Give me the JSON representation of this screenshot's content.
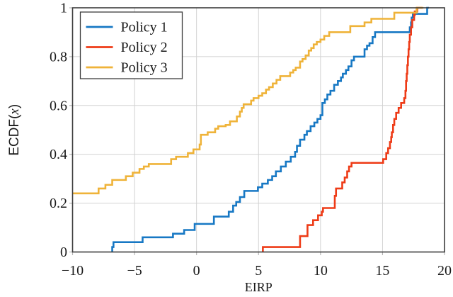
{
  "figure": {
    "background": "#ffffff",
    "frame_color": "#3d3d3d",
    "grid_color": "#d2d2d2",
    "tick_color": "#b5b5b5",
    "text_color": "#1a1a1a"
  },
  "legend": {
    "position": "top-left",
    "entries": [
      {
        "label": "Policy 1",
        "color": "#1778c4"
      },
      {
        "label": "Policy 2",
        "color": "#ee3b17"
      },
      {
        "label": "Policy 3",
        "color": "#efb339"
      }
    ]
  },
  "chart_data": {
    "type": "line",
    "subtype": "ecdf-step",
    "title": "",
    "xlabel": "EIRP",
    "ylabel": "ECDF(x)",
    "ylabel_parts": {
      "prefix": "ECDF(",
      "variable": "x",
      "suffix": ")"
    },
    "xlim": [
      -10,
      20
    ],
    "ylim": [
      0,
      1
    ],
    "x_ticks": [
      -10,
      -5,
      0,
      5,
      10,
      15,
      20
    ],
    "x_tick_labels": [
      "−10",
      "−5",
      "0",
      "5",
      "10",
      "15",
      "20"
    ],
    "y_ticks": [
      0,
      0.2,
      0.4,
      0.6,
      0.8,
      1
    ],
    "y_tick_labels": [
      "0",
      "0.2",
      "0.4",
      "0.6",
      "0.8",
      "1"
    ],
    "grid": true,
    "legend_position": "top-left",
    "series": [
      {
        "name": "Policy 1",
        "color": "#1778c4",
        "start_y": 0,
        "end_x": 18.75,
        "points": [
          [
            -6.8,
            0.02
          ],
          [
            -6.7,
            0.04
          ],
          [
            -4.35,
            0.06
          ],
          [
            -1.9,
            0.075
          ],
          [
            -1.0,
            0.09
          ],
          [
            -0.15,
            0.115
          ],
          [
            1.4,
            0.145
          ],
          [
            2.6,
            0.165
          ],
          [
            2.95,
            0.19
          ],
          [
            3.2,
            0.205
          ],
          [
            3.5,
            0.225
          ],
          [
            3.85,
            0.25
          ],
          [
            4.95,
            0.265
          ],
          [
            5.3,
            0.28
          ],
          [
            5.75,
            0.295
          ],
          [
            6.1,
            0.31
          ],
          [
            6.4,
            0.33
          ],
          [
            6.8,
            0.35
          ],
          [
            7.2,
            0.37
          ],
          [
            7.6,
            0.39
          ],
          [
            7.95,
            0.41
          ],
          [
            8.1,
            0.435
          ],
          [
            8.35,
            0.46
          ],
          [
            8.7,
            0.48
          ],
          [
            8.9,
            0.495
          ],
          [
            9.2,
            0.515
          ],
          [
            9.5,
            0.53
          ],
          [
            9.75,
            0.545
          ],
          [
            10.0,
            0.56
          ],
          [
            10.15,
            0.61
          ],
          [
            10.35,
            0.625
          ],
          [
            10.55,
            0.645
          ],
          [
            10.8,
            0.66
          ],
          [
            11.1,
            0.685
          ],
          [
            11.4,
            0.7
          ],
          [
            11.65,
            0.715
          ],
          [
            11.8,
            0.73
          ],
          [
            12.05,
            0.745
          ],
          [
            12.25,
            0.76
          ],
          [
            12.5,
            0.785
          ],
          [
            12.7,
            0.8
          ],
          [
            13.55,
            0.83
          ],
          [
            13.75,
            0.845
          ],
          [
            13.95,
            0.855
          ],
          [
            14.2,
            0.88
          ],
          [
            14.4,
            0.9
          ],
          [
            17.2,
            0.92
          ],
          [
            17.3,
            0.94
          ],
          [
            17.35,
            0.96
          ],
          [
            17.45,
            0.975
          ],
          [
            18.6,
            1.0
          ]
        ]
      },
      {
        "name": "Policy 2",
        "color": "#ee3b17",
        "start_y": 0,
        "end_x": 18.2,
        "points": [
          [
            5.35,
            0.02
          ],
          [
            8.35,
            0.065
          ],
          [
            8.95,
            0.11
          ],
          [
            9.4,
            0.13
          ],
          [
            9.8,
            0.15
          ],
          [
            10.1,
            0.165
          ],
          [
            10.2,
            0.18
          ],
          [
            11.15,
            0.23
          ],
          [
            11.25,
            0.26
          ],
          [
            11.75,
            0.285
          ],
          [
            11.95,
            0.305
          ],
          [
            12.15,
            0.33
          ],
          [
            12.3,
            0.35
          ],
          [
            12.5,
            0.365
          ],
          [
            15.05,
            0.38
          ],
          [
            15.3,
            0.405
          ],
          [
            15.45,
            0.425
          ],
          [
            15.6,
            0.45
          ],
          [
            15.7,
            0.47
          ],
          [
            15.75,
            0.49
          ],
          [
            15.85,
            0.52
          ],
          [
            15.95,
            0.545
          ],
          [
            16.1,
            0.57
          ],
          [
            16.3,
            0.59
          ],
          [
            16.5,
            0.61
          ],
          [
            16.75,
            0.63
          ],
          [
            16.85,
            0.66
          ],
          [
            16.9,
            0.7
          ],
          [
            16.95,
            0.73
          ],
          [
            17.0,
            0.765
          ],
          [
            17.05,
            0.8
          ],
          [
            17.1,
            0.83
          ],
          [
            17.15,
            0.86
          ],
          [
            17.2,
            0.89
          ],
          [
            17.3,
            0.92
          ],
          [
            17.4,
            0.95
          ],
          [
            17.55,
            0.97
          ],
          [
            17.6,
            0.985
          ],
          [
            17.8,
            1.0
          ]
        ]
      },
      {
        "name": "Policy 3",
        "color": "#efb339",
        "start_y": 0.24,
        "end_x": 18.3,
        "points": [
          [
            -10,
            0.24
          ],
          [
            -7.9,
            0.26
          ],
          [
            -7.35,
            0.275
          ],
          [
            -6.8,
            0.295
          ],
          [
            -5.7,
            0.31
          ],
          [
            -5.15,
            0.325
          ],
          [
            -4.6,
            0.34
          ],
          [
            -4.25,
            0.35
          ],
          [
            -3.85,
            0.36
          ],
          [
            -2.05,
            0.38
          ],
          [
            -1.65,
            0.39
          ],
          [
            -0.7,
            0.405
          ],
          [
            -0.25,
            0.42
          ],
          [
            0.25,
            0.44
          ],
          [
            0.35,
            0.48
          ],
          [
            0.9,
            0.49
          ],
          [
            1.5,
            0.505
          ],
          [
            1.75,
            0.515
          ],
          [
            2.35,
            0.52
          ],
          [
            2.7,
            0.535
          ],
          [
            3.25,
            0.555
          ],
          [
            3.5,
            0.575
          ],
          [
            3.65,
            0.59
          ],
          [
            3.8,
            0.605
          ],
          [
            4.4,
            0.62
          ],
          [
            4.6,
            0.63
          ],
          [
            5.0,
            0.64
          ],
          [
            5.3,
            0.65
          ],
          [
            5.6,
            0.665
          ],
          [
            5.85,
            0.675
          ],
          [
            6.15,
            0.69
          ],
          [
            6.45,
            0.705
          ],
          [
            6.75,
            0.72
          ],
          [
            7.55,
            0.735
          ],
          [
            7.8,
            0.745
          ],
          [
            8.0,
            0.755
          ],
          [
            8.35,
            0.78
          ],
          [
            8.55,
            0.79
          ],
          [
            8.8,
            0.805
          ],
          [
            9.05,
            0.825
          ],
          [
            9.25,
            0.835
          ],
          [
            9.45,
            0.85
          ],
          [
            9.7,
            0.86
          ],
          [
            10.0,
            0.87
          ],
          [
            10.3,
            0.885
          ],
          [
            10.7,
            0.9
          ],
          [
            12.4,
            0.925
          ],
          [
            13.55,
            0.94
          ],
          [
            14.1,
            0.955
          ],
          [
            15.95,
            0.98
          ],
          [
            17.75,
            1.0
          ]
        ]
      }
    ]
  }
}
